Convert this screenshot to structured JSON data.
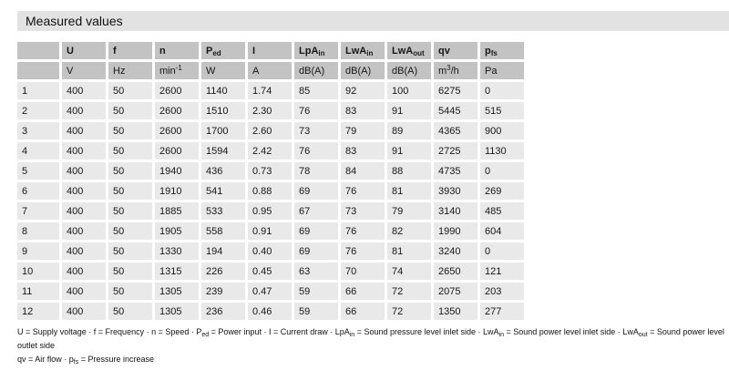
{
  "title": "Measured values",
  "colors": {
    "title_bar_bg": "#e2e2e2",
    "header_bg": "#c3c3c3",
    "cell_bg": "#e9e9e9",
    "text": "#161616"
  },
  "table": {
    "headers": [
      {
        "base": ""
      },
      {
        "base": "U"
      },
      {
        "base": "f"
      },
      {
        "base": "n"
      },
      {
        "base": "P",
        "sub": "ed"
      },
      {
        "base": "I"
      },
      {
        "base": "LpA",
        "sub": "in"
      },
      {
        "base": "LwA",
        "sub": "in"
      },
      {
        "base": "LwA",
        "sub": "out"
      },
      {
        "base": "qv"
      },
      {
        "base": "p",
        "sub": "fs"
      }
    ],
    "units": [
      {
        "pre": ""
      },
      {
        "pre": "V"
      },
      {
        "pre": "Hz"
      },
      {
        "pre": "min",
        "sup": "-1"
      },
      {
        "pre": "W"
      },
      {
        "pre": "A"
      },
      {
        "pre": "dB(A)"
      },
      {
        "pre": "dB(A)"
      },
      {
        "pre": "dB(A)"
      },
      {
        "pre": "m",
        "sup": "3",
        "post": "/h"
      },
      {
        "pre": "Pa"
      }
    ],
    "rows": [
      {
        "cells": [
          "1",
          "400",
          "50",
          "2600",
          "1140",
          "1.74",
          "85",
          "92",
          "100",
          "6275",
          "0"
        ]
      },
      {
        "cells": [
          "2",
          "400",
          "50",
          "2600",
          "1510",
          "2.30",
          "76",
          "83",
          "91",
          "5445",
          "515"
        ]
      },
      {
        "cells": [
          "3",
          "400",
          "50",
          "2600",
          "1700",
          "2.60",
          "73",
          "79",
          "89",
          "4365",
          "900"
        ]
      },
      {
        "cells": [
          "4",
          "400",
          "50",
          "2600",
          "1594",
          "2.42",
          "76",
          "83",
          "91",
          "2725",
          "1130"
        ]
      },
      {
        "cells": [
          "5",
          "400",
          "50",
          "1940",
          "436",
          "0.73",
          "78",
          "84",
          "88",
          "4735",
          "0"
        ]
      },
      {
        "cells": [
          "6",
          "400",
          "50",
          "1910",
          "541",
          "0.88",
          "69",
          "76",
          "81",
          "3930",
          "269"
        ]
      },
      {
        "cells": [
          "7",
          "400",
          "50",
          "1885",
          "533",
          "0.95",
          "67",
          "73",
          "79",
          "3140",
          "485"
        ]
      },
      {
        "cells": [
          "8",
          "400",
          "50",
          "1905",
          "558",
          "0.91",
          "69",
          "76",
          "82",
          "1990",
          "604"
        ]
      },
      {
        "cells": [
          "9",
          "400",
          "50",
          "1330",
          "194",
          "0.40",
          "69",
          "76",
          "81",
          "3240",
          "0"
        ]
      },
      {
        "cells": [
          "10",
          "400",
          "50",
          "1315",
          "226",
          "0.45",
          "63",
          "70",
          "74",
          "2650",
          "121"
        ]
      },
      {
        "cells": [
          "11",
          "400",
          "50",
          "1305",
          "239",
          "0.47",
          "59",
          "66",
          "72",
          "2075",
          "203"
        ]
      },
      {
        "cells": [
          "12",
          "400",
          "50",
          "1305",
          "236",
          "0.46",
          "59",
          "66",
          "72",
          "1350",
          "277"
        ]
      }
    ]
  },
  "footnote": {
    "line1": [
      {
        "t": "U = Supply voltage · f = Frequency · n = Speed · P"
      },
      {
        "sub": "ed"
      },
      {
        "t": " = Power input · I = Current draw · LpA"
      },
      {
        "sub": "in"
      },
      {
        "t": " = Sound pressure level inlet side · LwA"
      },
      {
        "sub": "in"
      },
      {
        "t": " = Sound power level inlet side · LwA"
      },
      {
        "sub": "out"
      },
      {
        "t": " = Sound power level outlet side"
      }
    ],
    "line2": [
      {
        "t": "qv = Air flow · p"
      },
      {
        "sub": "fs"
      },
      {
        "t": " = Pressure increase"
      }
    ]
  }
}
